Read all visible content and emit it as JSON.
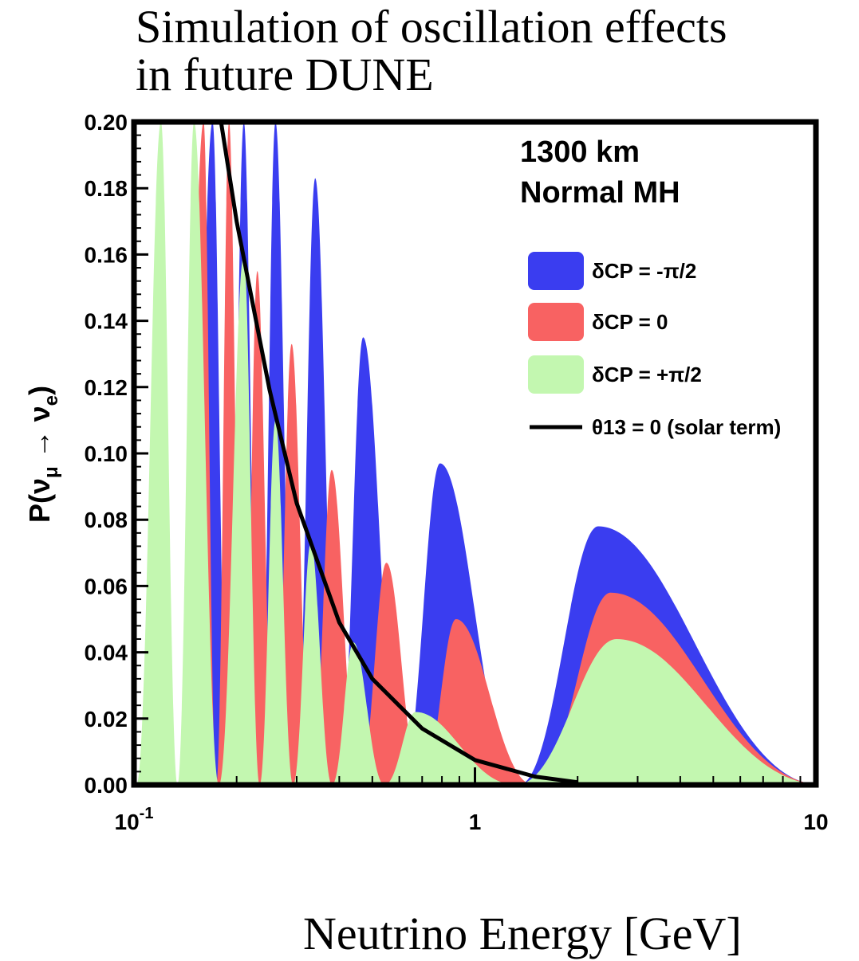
{
  "title": "Simulation of oscillation effects\nin future DUNE",
  "chart_data": {
    "type": "area",
    "x_scale": "log",
    "xlim": [
      0.1,
      10
    ],
    "ylim": [
      0,
      0.2
    ],
    "xlabel": "Neutrino Energy [GeV]",
    "ylabel": "P(νμ → νe)",
    "x_tick_labels": [
      {
        "value": 0.1,
        "base": "10",
        "exp": "-1"
      },
      {
        "value": 1,
        "base": "1",
        "exp": ""
      },
      {
        "value": 10,
        "base": "10",
        "exp": ""
      }
    ],
    "y_ticks": [
      0,
      0.02,
      0.04,
      0.06,
      0.08,
      0.1,
      0.12,
      0.14,
      0.16,
      0.18,
      0.2
    ],
    "y_tick_labels": [
      "0.00",
      "0.02",
      "0.04",
      "0.06",
      "0.08",
      "0.10",
      "0.12",
      "0.14",
      "0.16",
      "0.18",
      "0.20"
    ],
    "annotation": [
      "1300 km",
      "Normal MH"
    ],
    "legend": [
      {
        "label": "δCP = -π/2",
        "color": "#3a3df0"
      },
      {
        "label": "δCP = 0",
        "color": "#f86262"
      },
      {
        "label": "δCP = +π/2",
        "color": "#c3f7b0"
      },
      {
        "label": "θ13 = 0 (solar term)",
        "color": "#000000"
      }
    ],
    "legend_placement": "right",
    "series": [
      {
        "name": "δCP = -π/2",
        "color": "#3a3df0",
        "peaks": [
          [
            0.17,
            0.2
          ],
          [
            0.21,
            0.2
          ],
          [
            0.26,
            0.2
          ],
          [
            0.34,
            0.183
          ],
          [
            0.47,
            0.135
          ],
          [
            0.79,
            0.097
          ],
          [
            2.3,
            0.078
          ]
        ]
      },
      {
        "name": "δCP = 0",
        "color": "#f86262",
        "peaks": [
          [
            0.16,
            0.2
          ],
          [
            0.19,
            0.2
          ],
          [
            0.23,
            0.155
          ],
          [
            0.29,
            0.133
          ],
          [
            0.38,
            0.095
          ],
          [
            0.55,
            0.067
          ],
          [
            0.88,
            0.05
          ],
          [
            2.5,
            0.058
          ]
        ]
      },
      {
        "name": "δCP = +π/2",
        "color": "#c3f7b0",
        "peaks": [
          [
            0.12,
            0.2
          ],
          [
            0.15,
            0.2
          ],
          [
            0.21,
            0.16
          ],
          [
            0.26,
            0.11
          ],
          [
            0.33,
            0.073
          ],
          [
            0.44,
            0.043
          ],
          [
            0.67,
            0.022
          ],
          [
            2.6,
            0.044
          ]
        ]
      },
      {
        "name": "θ13 = 0 (solar term)",
        "color": "#000000",
        "x": [
          0.18,
          0.2,
          0.25,
          0.3,
          0.4,
          0.5,
          0.7,
          1.0,
          1.5,
          2.0
        ],
        "y": [
          0.2,
          0.17,
          0.119,
          0.085,
          0.049,
          0.032,
          0.017,
          0.0075,
          0.0025,
          0.0008
        ]
      }
    ]
  }
}
